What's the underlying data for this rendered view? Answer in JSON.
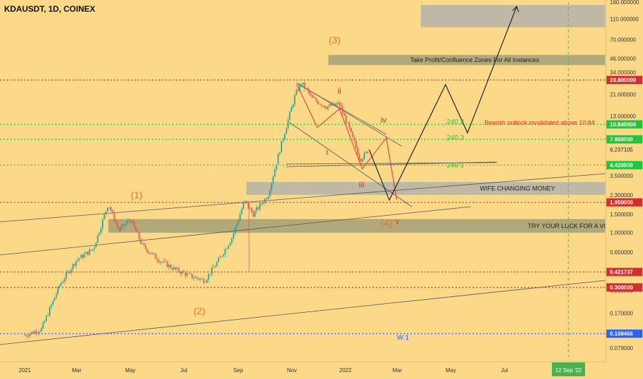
{
  "header": {
    "symbol_title": "KDAUSDT, 1D, COINEX"
  },
  "colors": {
    "background": "#fbd989",
    "candle_up": "#26a69a",
    "candle_down": "#ef5350",
    "zone_gray": "#b8b4a8",
    "zone_green": "#a9a37a",
    "level_red": "#d32f2f",
    "level_green": "#22c43a",
    "level_blue": "#2962ff",
    "wave_orange": "#e87722",
    "wave_red": "#e0322a"
  },
  "chart_data": {
    "type": "line",
    "scale": "log",
    "ylim": [
      0.065,
      160
    ],
    "y_ticks": [
      "160.000000",
      "110.000000",
      "70.000000",
      "46.000000",
      "34.000000",
      "21.000000",
      "13.000000",
      "3.500000",
      "2.300000",
      "1.500000",
      "1.000000",
      "0.650000",
      "0.280000",
      "0.170000",
      "0.079000"
    ],
    "x_ticks": [
      "2021",
      "Mar",
      "May",
      "Jul",
      "Sep",
      "Nov",
      "2022",
      "Mar",
      "May",
      "Jul",
      "12 Sep '22"
    ],
    "price_labels": [
      {
        "text": "28.800000",
        "kind": "red"
      },
      {
        "text": "10.849900",
        "kind": "green"
      },
      {
        "text": "7.800000",
        "kind": "green"
      },
      {
        "text": "6.237105",
        "kind": "last"
      },
      {
        "text": "4.420800",
        "kind": "green"
      },
      {
        "text": "1.950000",
        "kind": "red"
      },
      {
        "text": "0.421737",
        "kind": "red"
      },
      {
        "text": "0.300000",
        "kind": "red"
      },
      {
        "text": "0.108466",
        "kind": "blue"
      }
    ],
    "horizontal_levels": [
      {
        "value": 28.8,
        "kind": "red"
      },
      {
        "value": 10.8499,
        "kind": "green"
      },
      {
        "value": 7.8,
        "kind": "green"
      },
      {
        "value": 4.4208,
        "kind": "green"
      },
      {
        "value": 1.95,
        "kind": "red"
      },
      {
        "value": 0.421737,
        "kind": "red"
      },
      {
        "value": 0.3,
        "kind": "red"
      },
      {
        "value": 0.108466,
        "kind": "blue"
      }
    ],
    "price_path": [
      [
        "2021-01-01",
        0.105
      ],
      [
        "2021-01-20",
        0.12
      ],
      [
        "2021-02-10",
        0.32
      ],
      [
        "2021-03-01",
        0.55
      ],
      [
        "2021-03-20",
        0.7
      ],
      [
        "2021-04-06",
        1.9
      ],
      [
        "2021-04-18",
        1.05
      ],
      [
        "2021-05-01",
        1.35
      ],
      [
        "2021-05-15",
        0.75
      ],
      [
        "2021-06-01",
        0.56
      ],
      [
        "2021-06-20",
        0.45
      ],
      [
        "2021-07-10",
        0.38
      ],
      [
        "2021-07-25",
        0.35
      ],
      [
        "2021-08-10",
        0.55
      ],
      [
        "2021-08-25",
        0.9
      ],
      [
        "2021-09-08",
        2.0
      ],
      [
        "2021-09-18",
        1.5
      ],
      [
        "2021-10-05",
        2.3
      ],
      [
        "2021-10-20",
        7.0
      ],
      [
        "2021-11-05",
        21.0
      ],
      [
        "2021-11-12",
        27.0
      ],
      [
        "2021-11-25",
        19.0
      ],
      [
        "2021-12-10",
        16.0
      ],
      [
        "2021-12-25",
        17.0
      ],
      [
        "2022-01-05",
        10.0
      ],
      [
        "2022-01-18",
        5.0
      ],
      [
        "2022-01-28",
        6.24
      ]
    ],
    "projection_path": [
      [
        "2022-01-28",
        6.24
      ],
      [
        "2022-02-20",
        2.05
      ],
      [
        "2022-04-25",
        26.0
      ],
      [
        "2022-05-20",
        9.0
      ],
      [
        "2022-07-15",
        145.0
      ]
    ],
    "zones": [
      {
        "label": "",
        "kind": "gray",
        "ymin": 92,
        "ymax": 150
      },
      {
        "label": "Take Profit/Confluence Zones For All Instances",
        "kind": "green",
        "ymin": 40,
        "ymax": 50
      },
      {
        "label": "WIFE CHANGING MONEY",
        "kind": "gray",
        "ymin": 2.3,
        "ymax": 3.05
      },
      {
        "label": "TRY YOUR LUCK FOR A VOL",
        "kind": "green",
        "ymin": 1.0,
        "ymax": 1.35
      }
    ],
    "annotations": [
      {
        "text": "(1)",
        "kind": "wave_orange"
      },
      {
        "text": "(2)",
        "kind": "wave_orange"
      },
      {
        "text": "(3)",
        "kind": "wave_orange"
      },
      {
        "text": "(4)",
        "kind": "wave_orange"
      },
      {
        "text": "v",
        "kind": "wave_red"
      },
      {
        "text": "i",
        "kind": "wave_red"
      },
      {
        "text": "ii",
        "kind": "wave_red"
      },
      {
        "text": "iii",
        "kind": "wave_red"
      },
      {
        "text": "iv",
        "kind": "wave_red"
      },
      {
        "text": "240 1",
        "kind": "green"
      },
      {
        "text": "240 2",
        "kind": "green"
      },
      {
        "text": "240 3",
        "kind": "green"
      },
      {
        "text": "Bearish outlook invalidated above 10.84",
        "kind": "wave_red"
      },
      {
        "text": "W 1",
        "kind": "blue"
      }
    ]
  }
}
